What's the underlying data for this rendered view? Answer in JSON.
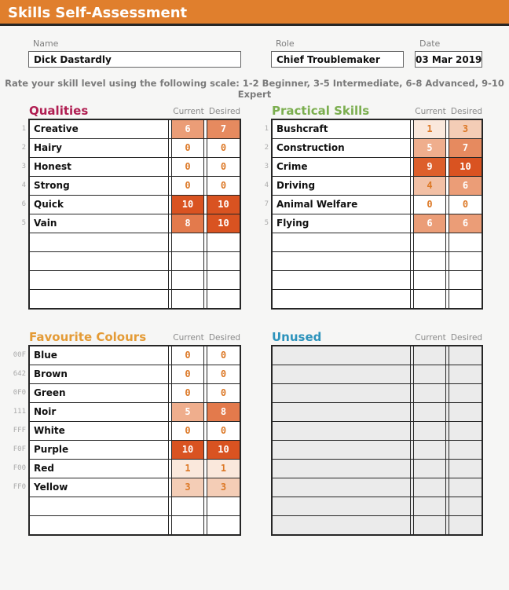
{
  "header": {
    "title": "Skills Self-Assessment"
  },
  "fields": {
    "name": {
      "label": "Name",
      "value": "Dick Dastardly"
    },
    "role": {
      "label": "Role",
      "value": "Chief Troublemaker"
    },
    "date": {
      "label": "Date",
      "value": "03 Mar 2019"
    }
  },
  "instruction": "Rate your skill level using the following scale: 1-2 Beginner, 3-5 Intermediate, 6-8 Advanced, 9-10 Expert",
  "columns": {
    "current": "Current",
    "desired": "Desired"
  },
  "colors": {
    "title_bar_bg": "#E07F2D",
    "grid_border": "#262626",
    "unused_fill": "#EBEBEB",
    "value_text_orange": "#DC7826"
  },
  "heat_scale": {
    "0": {
      "bg": "#FFFFFF",
      "fg": "#DC7826"
    },
    "1": {
      "bg": "#FAE8DC",
      "fg": "#DC7826"
    },
    "3": {
      "bg": "#F4CDB6",
      "fg": "#DC7826"
    },
    "4": {
      "bg": "#F2C0A5",
      "fg": "#DC7826"
    },
    "5": {
      "bg": "#EFAE8D",
      "fg": "#FFFFFF"
    },
    "6": {
      "bg": "#EB9D77",
      "fg": "#FFFFFF"
    },
    "7": {
      "bg": "#E68A5F",
      "fg": "#FFFFFF"
    },
    "8": {
      "bg": "#E37A4C",
      "fg": "#FFFFFF"
    },
    "9": {
      "bg": "#DD5F2B",
      "fg": "#FFFFFF"
    },
    "10": {
      "bg": "#D95321",
      "fg": "#FFFFFF"
    }
  },
  "sections": [
    {
      "id": "qualities",
      "title": "Qualities",
      "title_color": "#B01E52",
      "variant": "white",
      "empty_rows": 4,
      "rows": [
        {
          "index": "1",
          "name": "Creative",
          "current": 6,
          "desired": 7
        },
        {
          "index": "2",
          "name": "Hairy",
          "current": 0,
          "desired": 0
        },
        {
          "index": "3",
          "name": "Honest",
          "current": 0,
          "desired": 0
        },
        {
          "index": "4",
          "name": "Strong",
          "current": 0,
          "desired": 0
        },
        {
          "index": "6",
          "name": "Quick",
          "current": 10,
          "desired": 10
        },
        {
          "index": "5",
          "name": "Vain",
          "current": 8,
          "desired": 10
        }
      ]
    },
    {
      "id": "practical",
      "title": "Practical Skills",
      "title_color": "#7BAE4F",
      "variant": "white",
      "empty_rows": 4,
      "rows": [
        {
          "index": "1",
          "name": "Bushcraft",
          "current": 1,
          "desired": 3
        },
        {
          "index": "2",
          "name": "Construction",
          "current": 5,
          "desired": 7
        },
        {
          "index": "3",
          "name": "Crime",
          "current": 9,
          "desired": 10
        },
        {
          "index": "4",
          "name": "Driving",
          "current": 4,
          "desired": 6
        },
        {
          "index": "7",
          "name": "Animal Welfare",
          "current": 0,
          "desired": 0
        },
        {
          "index": "5",
          "name": "Flying",
          "current": 6,
          "desired": 6
        }
      ]
    },
    {
      "id": "colours",
      "title": "Favourite Colours",
      "title_color": "#E49B36",
      "variant": "white",
      "empty_rows": 2,
      "rows": [
        {
          "index": "00F",
          "name": "Blue",
          "current": 0,
          "desired": 0
        },
        {
          "index": "642",
          "name": "Brown",
          "current": 0,
          "desired": 0
        },
        {
          "index": "0F0",
          "name": "Green",
          "current": 0,
          "desired": 0
        },
        {
          "index": "111",
          "name": "Noir",
          "current": 5,
          "desired": 8
        },
        {
          "index": "FFF",
          "name": "White",
          "current": 0,
          "desired": 0
        },
        {
          "index": "F0F",
          "name": "Purple",
          "current": 10,
          "desired": 10
        },
        {
          "index": "F00",
          "name": "Red",
          "current": 1,
          "desired": 1
        },
        {
          "index": "FF0",
          "name": "Yellow",
          "current": 3,
          "desired": 3
        }
      ]
    },
    {
      "id": "unused",
      "title": "Unused",
      "title_color": "#2D93BC",
      "variant": "gray",
      "empty_rows": 10,
      "rows": []
    }
  ]
}
